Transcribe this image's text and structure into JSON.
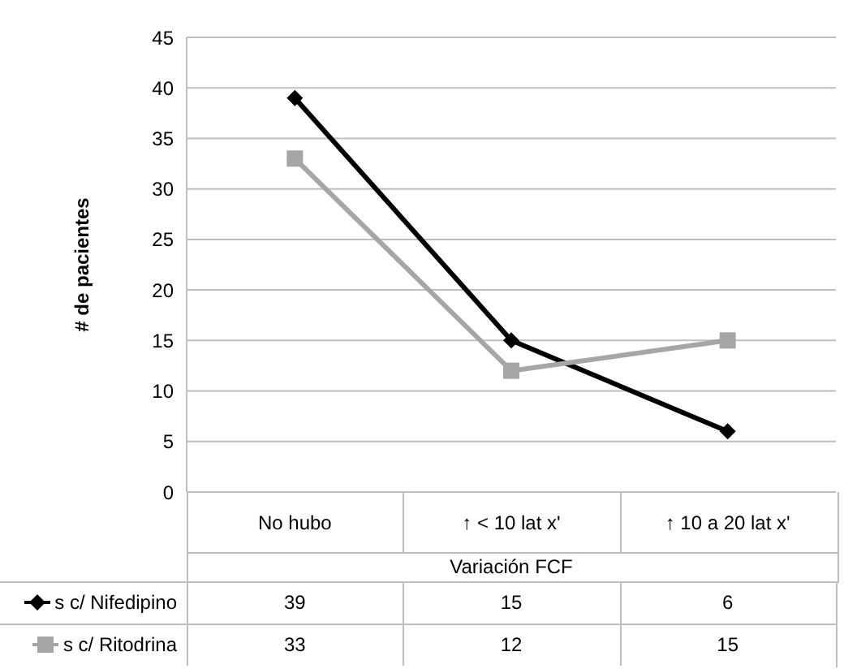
{
  "chart_data": {
    "type": "line",
    "ylabel": "# de pacientes",
    "xlabel": "Variación FCF",
    "categories": [
      "No hubo",
      "↑ < 10 lat x'",
      "↑ 10 a 20 lat x'"
    ],
    "series": [
      {
        "name": "s c/ Nifedipino",
        "color": "#000000",
        "values": [
          39,
          15,
          6
        ],
        "marker": "diamond"
      },
      {
        "name": "s c/ Ritodrina",
        "color": "#a6a6a6",
        "values": [
          33,
          12,
          15
        ],
        "marker": "square"
      }
    ],
    "ylim": [
      0,
      45
    ],
    "yticks": [
      0,
      5,
      10,
      15,
      20,
      25,
      30,
      35,
      40,
      45
    ],
    "grid": "y",
    "data_labels": true,
    "legend": "bottom left",
    "line_style": "solid"
  }
}
